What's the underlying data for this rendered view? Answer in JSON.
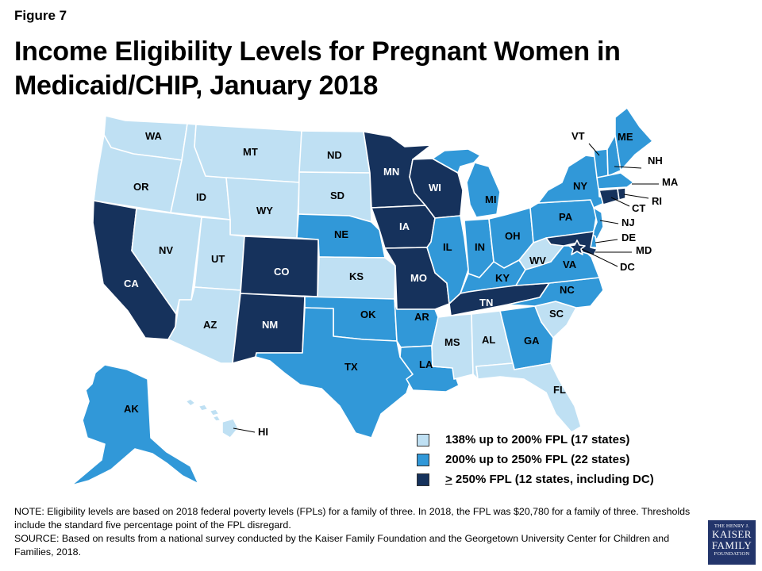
{
  "figure_label": "Figure 7",
  "title": "Income Eligibility Levels for Pregnant Women in Medicaid/CHIP, January 2018",
  "colors": {
    "low": "#bfe0f3",
    "mid": "#3198d8",
    "high": "#16325c",
    "border": "#ffffff"
  },
  "legend": {
    "low": {
      "text": "138% up to 200% FPL (17 states)"
    },
    "mid": {
      "text": "200% up to 250% FPL (22 states)"
    },
    "high": {
      "symbol": ">",
      "text": " 250% FPL (12 states, including DC)"
    }
  },
  "states": {
    "WA": {
      "label": "WA",
      "tier": "low"
    },
    "OR": {
      "label": "OR",
      "tier": "low"
    },
    "CA": {
      "label": "CA",
      "tier": "high"
    },
    "ID": {
      "label": "ID",
      "tier": "low"
    },
    "NV": {
      "label": "NV",
      "tier": "low"
    },
    "MT": {
      "label": "MT",
      "tier": "low"
    },
    "WY": {
      "label": "WY",
      "tier": "low"
    },
    "UT": {
      "label": "UT",
      "tier": "low"
    },
    "AZ": {
      "label": "AZ",
      "tier": "low"
    },
    "CO": {
      "label": "CO",
      "tier": "high"
    },
    "NM": {
      "label": "NM",
      "tier": "high"
    },
    "ND": {
      "label": "ND",
      "tier": "low"
    },
    "SD": {
      "label": "SD",
      "tier": "low"
    },
    "NE": {
      "label": "NE",
      "tier": "mid"
    },
    "KS": {
      "label": "KS",
      "tier": "low"
    },
    "OK": {
      "label": "OK",
      "tier": "mid"
    },
    "TX": {
      "label": "TX",
      "tier": "mid"
    },
    "MN": {
      "label": "MN",
      "tier": "high"
    },
    "IA": {
      "label": "IA",
      "tier": "high"
    },
    "MO": {
      "label": "MO",
      "tier": "high"
    },
    "AR": {
      "label": "AR",
      "tier": "mid"
    },
    "LA": {
      "label": "LA",
      "tier": "mid"
    },
    "WI": {
      "label": "WI",
      "tier": "high"
    },
    "IL": {
      "label": "IL",
      "tier": "mid"
    },
    "MI": {
      "label": "MI",
      "tier": "mid"
    },
    "IN": {
      "label": "IN",
      "tier": "mid"
    },
    "OH": {
      "label": "OH",
      "tier": "mid"
    },
    "KY": {
      "label": "KY",
      "tier": "mid"
    },
    "TN": {
      "label": "TN",
      "tier": "high"
    },
    "MS": {
      "label": "MS",
      "tier": "low"
    },
    "AL": {
      "label": "AL",
      "tier": "low"
    },
    "GA": {
      "label": "GA",
      "tier": "mid"
    },
    "FL": {
      "label": "FL",
      "tier": "low"
    },
    "SC": {
      "label": "SC",
      "tier": "low"
    },
    "NC": {
      "label": "NC",
      "tier": "mid"
    },
    "VA": {
      "label": "VA",
      "tier": "mid"
    },
    "WV": {
      "label": "WV",
      "tier": "low"
    },
    "PA": {
      "label": "PA",
      "tier": "mid"
    },
    "NY": {
      "label": "NY",
      "tier": "mid"
    },
    "NJ": {
      "label": "NJ",
      "tier": "mid"
    },
    "DE": {
      "label": "DE",
      "tier": "mid"
    },
    "MD": {
      "label": "MD",
      "tier": "high"
    },
    "DC": {
      "label": "DC",
      "tier": "high"
    },
    "VT": {
      "label": "VT",
      "tier": "mid"
    },
    "NH": {
      "label": "NH",
      "tier": "mid"
    },
    "ME": {
      "label": "ME",
      "tier": "mid"
    },
    "MA": {
      "label": "MA",
      "tier": "mid"
    },
    "RI": {
      "label": "RI",
      "tier": "high"
    },
    "CT": {
      "label": "CT",
      "tier": "high"
    },
    "AK": {
      "label": "AK",
      "tier": "mid"
    },
    "HI": {
      "label": "HI",
      "tier": "low"
    }
  },
  "notes": {
    "note": "NOTE: Eligibility levels are based on 2018  federal poverty levels (FPLs) for a family of three. In 2018,  the FPL was $20,780  for a  family of three. Thresholds include the standard five percentage point of the FPL disregard.",
    "source": "SOURCE: Based on results from a national survey conducted by the Kaiser Family Foundation and the Georgetown University Center for Children and Families, 2018."
  },
  "logo": {
    "line1": "THE HENRY J.",
    "line2": "KAISER",
    "line3": "FAMILY",
    "line4": "FOUNDATION"
  }
}
